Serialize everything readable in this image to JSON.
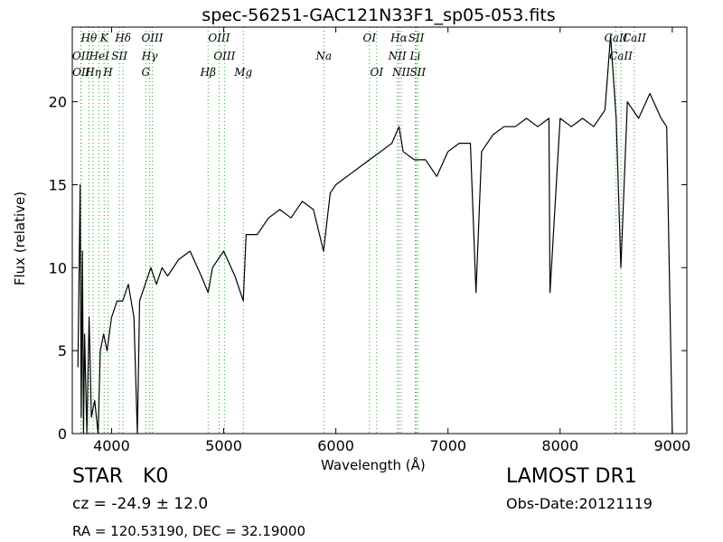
{
  "title": "spec-56251-GAC121N33F1_sp05-053.fits",
  "object": {
    "class": "STAR",
    "subclass": "K0"
  },
  "redshift_text": "cz = -24.9 ± 12.0",
  "coords_text": "RA = 120.53190, DEC = 32.19000",
  "survey": "LAMOST DR1",
  "obs_date": "Obs-Date:20121119",
  "chart_data": {
    "type": "line",
    "title": "spec-56251-GAC121N33F1_sp05-053.fits",
    "xlabel": "Wavelength (Å)",
    "ylabel": "Flux (relative)",
    "xlim": [
      3650,
      9130
    ],
    "ylim": [
      0,
      24.5
    ],
    "xticks": [
      4000,
      5000,
      6000,
      7000,
      8000,
      9000
    ],
    "yticks": [
      0,
      5,
      10,
      15,
      20
    ],
    "series": [
      {
        "x": [
          3700,
          3720,
          3730,
          3740,
          3750,
          3760,
          3780,
          3800,
          3820,
          3850,
          3880,
          3900,
          3930,
          3960,
          4000,
          4050,
          4100,
          4150,
          4200,
          4230,
          4250,
          4300,
          4350,
          4400,
          4450,
          4500,
          4600,
          4700,
          4800,
          4861,
          4900,
          5000,
          5100,
          5175,
          5200,
          5300,
          5400,
          5500,
          5600,
          5700,
          5800,
          5890,
          5950,
          6000,
          6100,
          6200,
          6300,
          6400,
          6500,
          6563,
          6600,
          6700,
          6800,
          6900,
          7000,
          7100,
          7200,
          7250,
          7300,
          7400,
          7500,
          7600,
          7700,
          7800,
          7900,
          7910,
          8000,
          8100,
          8200,
          8300,
          8400,
          8450,
          8500,
          8542,
          8600,
          8700,
          8800,
          8900,
          8950,
          9000
        ],
        "y": [
          4,
          15,
          1,
          11,
          0,
          6,
          0,
          7,
          1,
          2,
          0,
          5,
          6,
          5,
          7,
          8,
          8,
          9,
          7,
          0,
          8,
          9,
          10,
          9,
          10,
          9.5,
          10.5,
          11,
          9.5,
          8.5,
          10,
          11,
          9.5,
          8,
          12,
          12,
          13,
          13.5,
          13,
          14,
          13.5,
          11,
          14.5,
          15,
          15.5,
          16,
          16.5,
          17,
          17.5,
          18.5,
          17,
          16.5,
          16.5,
          15.5,
          17,
          17.5,
          17.5,
          8.5,
          17,
          18,
          18.5,
          18.5,
          19,
          18.5,
          19,
          8.5,
          19,
          18.5,
          19,
          18.5,
          19.5,
          24,
          19,
          10,
          20,
          19,
          20.5,
          19,
          18.5,
          0
        ]
      }
    ],
    "spectral_lines": [
      {
        "label": "Hθ",
        "x": 3798
      },
      {
        "label": "K",
        "x": 3934
      },
      {
        "label": "Hδ",
        "x": 4102
      },
      {
        "label": "OIII",
        "x": 4363
      },
      {
        "label": "OIII",
        "x": 4959
      },
      {
        "label": "OI",
        "x": 6300
      },
      {
        "label": "Hα",
        "x": 6563
      },
      {
        "label": "SII",
        "x": 6717
      },
      {
        "label": "CaII",
        "x": 8498
      },
      {
        "label": "OII",
        "x": 3727
      },
      {
        "label": "HeI",
        "x": 3889
      },
      {
        "label": "SII",
        "x": 4070
      },
      {
        "label": "Hγ",
        "x": 4340
      },
      {
        "label": "OIII",
        "x": 5007
      },
      {
        "label": "Na",
        "x": 5893
      },
      {
        "label": "NII",
        "x": 6548
      },
      {
        "label": "Li",
        "x": 6708
      },
      {
        "label": "CaII",
        "x": 8542
      },
      {
        "label": "OII",
        "x": 3729
      },
      {
        "label": "Hη",
        "x": 3835
      },
      {
        "label": "H",
        "x": 3968
      },
      {
        "label": "G",
        "x": 4305
      },
      {
        "label": "Hβ",
        "x": 4861
      },
      {
        "label": "Mg",
        "x": 5175
      },
      {
        "label": "OI",
        "x": 6364
      },
      {
        "label": "NII",
        "x": 6583
      },
      {
        "label": "SII",
        "x": 6731
      },
      {
        "label": "CaII",
        "x": 8662
      }
    ]
  }
}
